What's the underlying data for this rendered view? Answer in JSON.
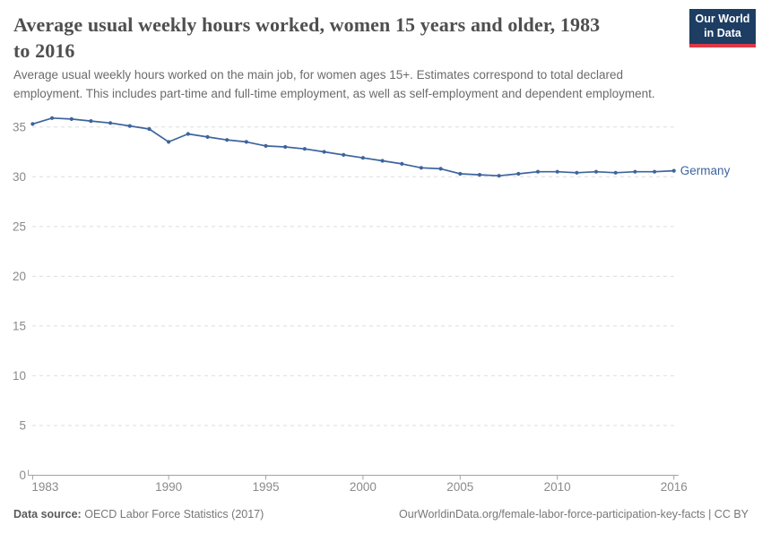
{
  "header": {
    "title_lines": [
      "Average usual weekly hours worked, women 15 years and older, 1983",
      "to 2016"
    ],
    "logo": {
      "line1": "Our World",
      "line2": "in Data"
    }
  },
  "subtitle_lines": [
    "Average usual weekly hours worked on the main job, for women ages 15+. Estimates correspond to total declared",
    "employment. This includes part-time and full-time employment, as well as self-employment and dependent employment."
  ],
  "footer": {
    "datasource_label": "Data source:",
    "datasource_value": "OECD Labor Force Statistics (2017)",
    "link_text": "OurWorldinData.org/female-labor-force-participation-key-facts | CC BY"
  },
  "colors": {
    "line": "#3d649d",
    "title": "#4f4f4f",
    "subtitle": "#6b6b6b",
    "tick_label": "#8a8a8a",
    "gridline": "#dddddd",
    "axis": "#a3a3a3",
    "logo_bg": "#1d3d63",
    "logo_stripe": "#dc3847"
  },
  "chart_data": {
    "type": "line",
    "title": "Average usual weekly hours worked, women 15 years and older, 1983 to 2016",
    "xlabel": "",
    "ylabel": "",
    "grid": "horizontal-dashed",
    "legend_position": "end-of-line",
    "x": [
      1983,
      1984,
      1985,
      1986,
      1987,
      1988,
      1989,
      1990,
      1991,
      1992,
      1993,
      1994,
      1995,
      1996,
      1997,
      1998,
      1999,
      2000,
      2001,
      2002,
      2003,
      2004,
      2005,
      2006,
      2007,
      2008,
      2009,
      2010,
      2011,
      2012,
      2013,
      2014,
      2015,
      2016
    ],
    "series": [
      {
        "name": "Germany",
        "color": "#3d649d",
        "values": [
          35.3,
          35.9,
          35.8,
          35.6,
          35.4,
          35.1,
          34.8,
          33.5,
          34.3,
          34.0,
          33.7,
          33.5,
          33.1,
          33.0,
          32.8,
          32.5,
          32.2,
          31.9,
          31.6,
          31.3,
          30.9,
          30.8,
          30.3,
          30.2,
          30.1,
          30.3,
          30.5,
          30.5,
          30.4,
          30.5,
          30.4,
          30.5,
          30.5,
          30.6
        ]
      }
    ],
    "xticks": [
      1983,
      1990,
      1995,
      2000,
      2005,
      2010,
      2016
    ],
    "yticks": [
      0,
      5,
      10,
      15,
      20,
      25,
      30,
      35
    ],
    "xlim": [
      1983,
      2016
    ],
    "ylim": [
      0,
      37
    ]
  }
}
